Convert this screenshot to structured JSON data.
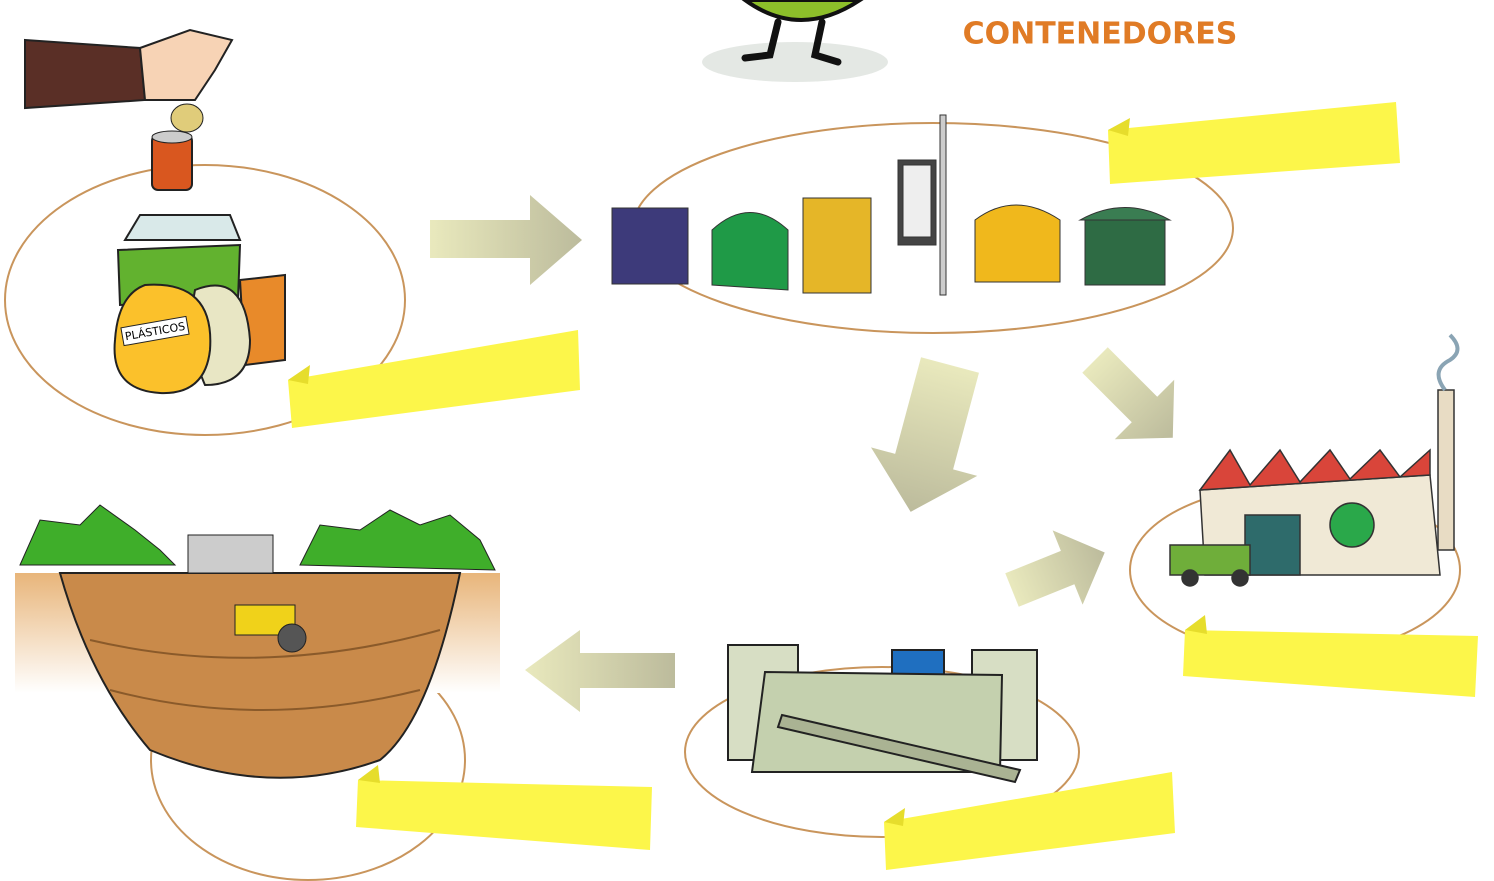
{
  "header": {
    "title": "CONTENEDORES"
  },
  "illustrations": {
    "bag_label": "PLÁSTICOS"
  }
}
